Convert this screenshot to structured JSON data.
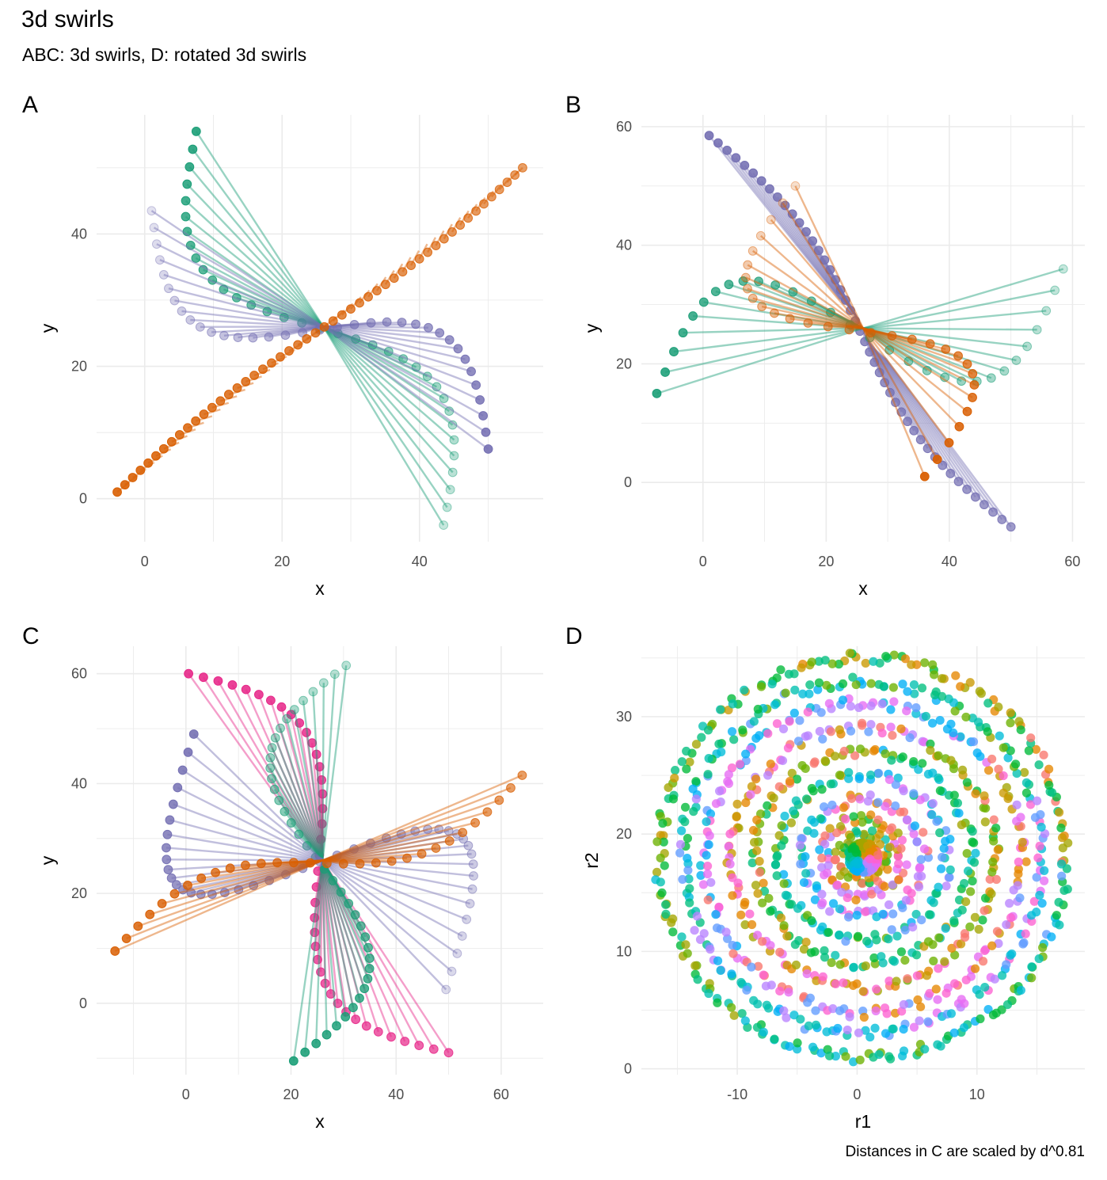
{
  "title": "3d swirls",
  "subtitle": "ABC: 3d swirls, D: rotated 3d swirls",
  "caption": "Distances in C are scaled by d^0.81",
  "colors": {
    "green": "#1B9E77",
    "orange": "#D95F02",
    "purple": "#7570B3",
    "pink": "#E7298A",
    "grid": "#EBEBEB",
    "tick_text": "#4D4D4D",
    "D_palette": [
      "#F8766D",
      "#E58700",
      "#C99800",
      "#A3A500",
      "#6BB100",
      "#00BA38",
      "#00BF7D",
      "#00C0AF",
      "#00BCD8",
      "#00B0F6",
      "#619CFF",
      "#B983FF",
      "#E76BF3",
      "#FD61D1"
    ]
  },
  "chart_data": [
    {
      "tag": "A",
      "type": "scatter",
      "xlabel": "x",
      "ylabel": "y",
      "xlim": [
        -7,
        58
      ],
      "ylim": [
        -6.5,
        58
      ],
      "xticks": [
        0,
        20,
        40
      ],
      "yticks": [
        0,
        20,
        40
      ],
      "xtick_labels": [
        "0",
        "20",
        "40"
      ],
      "ytick_labels": [
        "0",
        "20",
        "40"
      ],
      "center": [
        26,
        26
      ],
      "series": [
        {
          "name": "green",
          "color": "green",
          "n": 35,
          "from": [
            43.5,
            -4
          ],
          "to": [
            7.5,
            55.5
          ],
          "perp_amp": -10,
          "lines_from": "point",
          "alpha_start": 0.25,
          "alpha_end": 0.9
        },
        {
          "name": "purple",
          "color": "purple",
          "n": 35,
          "from": [
            1,
            43.5
          ],
          "to": [
            50,
            7.5
          ],
          "perp_amp": -10,
          "lines_from": "point",
          "alpha_start": 0.2,
          "alpha_end": 0.9
        },
        {
          "name": "orange",
          "color": "orange",
          "n": 50,
          "from": [
            -4,
            1
          ],
          "to": [
            55,
            50
          ],
          "perp_amp": 1,
          "lines_from": "end",
          "alpha_start": 0.9,
          "alpha_end": 0.6
        }
      ]
    },
    {
      "tag": "B",
      "type": "scatter",
      "xlabel": "x",
      "ylabel": "y",
      "xlim": [
        -10,
        62
      ],
      "ylim": [
        -10,
        62
      ],
      "xticks": [
        0,
        20,
        40,
        60
      ],
      "yticks": [
        0,
        20,
        40,
        60
      ],
      "xtick_labels": [
        "0",
        "20",
        "40",
        "60"
      ],
      "ytick_labels": [
        "0",
        "20",
        "40",
        "60"
      ],
      "center": [
        26,
        26
      ],
      "series": [
        {
          "name": "purple",
          "color": "purple",
          "n": 45,
          "from": [
            1,
            58.5
          ],
          "to": [
            50,
            -7.5
          ],
          "perp_amp": 3,
          "lines_from": "diag",
          "alpha_start": 0.9,
          "alpha_end": 0.7
        },
        {
          "name": "green",
          "color": "green",
          "n": 30,
          "from": [
            -7.5,
            15
          ],
          "to": [
            58.5,
            36
          ],
          "perp_amp": 14,
          "lines_from": "point",
          "alpha_start": 0.9,
          "alpha_end": 0.25
        },
        {
          "name": "orange",
          "color": "orange",
          "n": 30,
          "from": [
            36,
            1
          ],
          "to": [
            15,
            50
          ],
          "perp_amp": -14,
          "lines_from": "point",
          "alpha_start": 0.95,
          "alpha_end": 0.2
        }
      ]
    },
    {
      "tag": "C",
      "type": "scatter",
      "xlabel": "x",
      "ylabel": "y",
      "xlim": [
        -17,
        68
      ],
      "ylim": [
        -13,
        65
      ],
      "xticks": [
        0,
        20,
        40,
        60
      ],
      "yticks": [
        0,
        20,
        40,
        60
      ],
      "xtick_labels": [
        "0",
        "20",
        "40",
        "60"
      ],
      "ytick_labels": [
        "0",
        "20",
        "40",
        "60"
      ],
      "center": [
        26,
        26
      ],
      "series": [
        {
          "name": "pink",
          "color": "pink",
          "n": 40,
          "from": [
            0.5,
            60
          ],
          "to": [
            50,
            -9
          ],
          "perp_amp": 12,
          "lines_from": "point",
          "alpha_start": 0.9,
          "alpha_end": 0.7
        },
        {
          "name": "green",
          "color": "green",
          "n": 40,
          "from": [
            20.5,
            -10.5
          ],
          "to": [
            30.5,
            61.5
          ],
          "perp_amp": -12,
          "lines_from": "point",
          "alpha_start": 0.9,
          "alpha_end": 0.3
        },
        {
          "name": "purple",
          "color": "purple",
          "n": 45,
          "from": [
            1.5,
            49
          ],
          "to": [
            49.5,
            2.5
          ],
          "perp_amp": -22,
          "lines_from": "point",
          "alpha_start": 0.9,
          "alpha_end": 0.25
        },
        {
          "name": "orange",
          "color": "orange",
          "n": 30,
          "from": [
            -13.5,
            9.5
          ],
          "to": [
            64,
            41.5
          ],
          "perp_amp": 6,
          "lines_from": "point",
          "alpha_start": 0.85,
          "alpha_end": 0.6
        }
      ]
    },
    {
      "tag": "D",
      "type": "scatter",
      "xlabel": "r1",
      "ylabel": "r2",
      "xlim": [
        -18,
        19
      ],
      "ylim": [
        -0.5,
        36
      ],
      "xticks": [
        -10,
        0,
        10
      ],
      "yticks": [
        0,
        10,
        20,
        30
      ],
      "xtick_labels": [
        "-10",
        "0",
        "10"
      ],
      "ytick_labels": [
        "0",
        "10",
        "20",
        "30"
      ],
      "center": [
        0.5,
        18
      ],
      "rings": [
        {
          "radius": 17.0,
          "n": 110
        },
        {
          "radius": 15.0,
          "n": 100
        },
        {
          "radius": 13.2,
          "n": 90
        },
        {
          "radius": 11.0,
          "n": 78
        },
        {
          "radius": 9.0,
          "n": 66
        },
        {
          "radius": 7.0,
          "n": 54
        },
        {
          "radius": 5.0,
          "n": 42
        },
        {
          "radius": 3.3,
          "n": 32
        },
        {
          "radius": 2.0,
          "n": 22
        }
      ]
    }
  ]
}
